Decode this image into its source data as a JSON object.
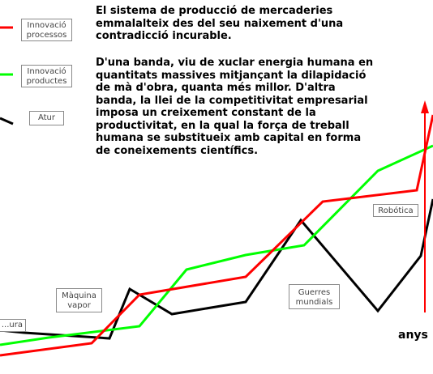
{
  "text": {
    "intro": "El sistema de producció de mercaderies\nemmalalteix des del seu naixement d'una\ncontradicció incurable.",
    "body": "D'una banda, viu de xuclar energia humana en\nquantitats massives mitjançant la dilapidació\nde mà d'obra, quanta més millor. D'altra\nbanda, la llei de la competitivitat empresarial\nimposa un creixement constant de la\nproductivitat, en la qual la força de treball\nhumana se substitueix amb capital en forma\nde coneixements científics."
  },
  "legend": [
    {
      "label": "Innovació\nprocessos",
      "color": "#ff0000"
    },
    {
      "label": "Innovació\nproductes",
      "color": "#00ff00"
    },
    {
      "label": "Atur",
      "color": "#000000"
    }
  ],
  "event_labels": {
    "agricultura": "...ura",
    "maquina_vapor": "Màquina\nvapor",
    "guerres_mundials": "Guerres\nmundials",
    "robotica": "Robótica"
  },
  "axis_label": "anys",
  "colors": {
    "red": "#ff0000",
    "green": "#00ff00",
    "black": "#000000"
  }
}
